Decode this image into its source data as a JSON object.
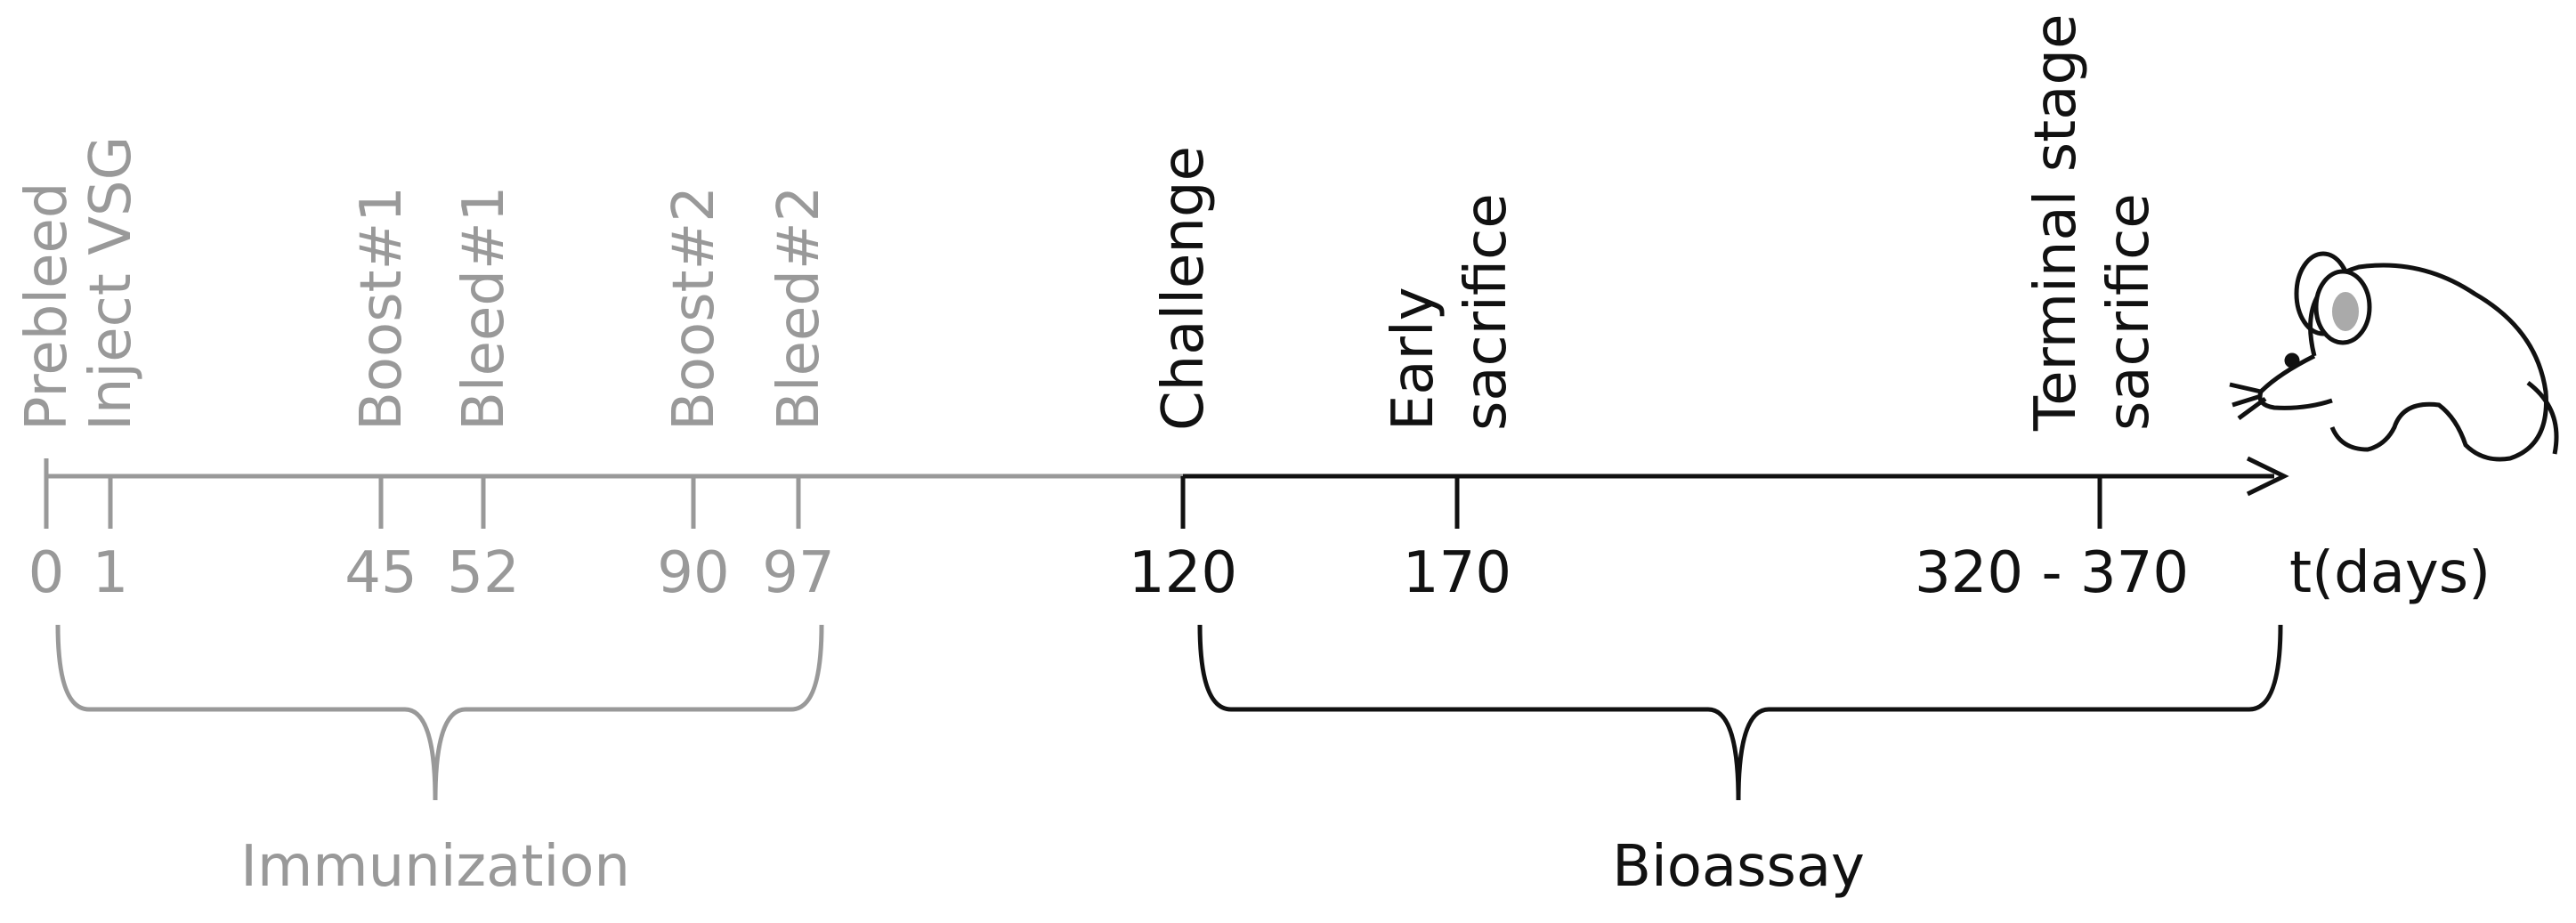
{
  "events": [
    {
      "labels": [
        "Prebleed"
      ],
      "day": "0"
    },
    {
      "labels": [
        "Inject VSG"
      ],
      "day": "1"
    },
    {
      "labels": [
        "Boost#1"
      ],
      "day": "45"
    },
    {
      "labels": [
        "Bleed#1"
      ],
      "day": "52"
    },
    {
      "labels": [
        "Boost#2"
      ],
      "day": "90"
    },
    {
      "labels": [
        "Bleed#2"
      ],
      "day": "97"
    },
    {
      "labels": [
        "Challenge"
      ],
      "day": "120"
    },
    {
      "labels": [
        "Early",
        "sacrifice"
      ],
      "day": "170"
    },
    {
      "labels": [
        "Terminal stage",
        "sacrifice"
      ],
      "day": "320 - 370"
    }
  ],
  "axis_label": "t(days)",
  "phases": [
    {
      "label": "Immunization"
    },
    {
      "label": "Bioassay"
    }
  ]
}
